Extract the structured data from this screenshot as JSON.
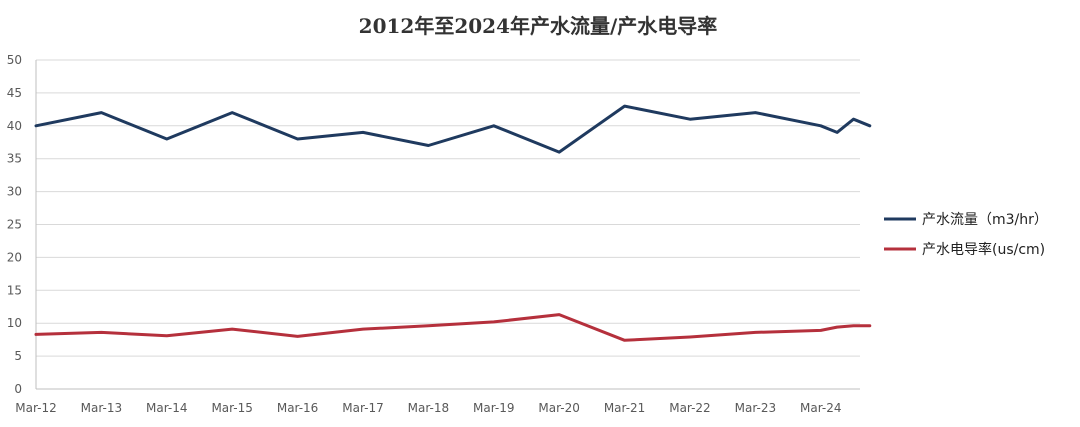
{
  "chart_data": {
    "type": "line",
    "title": "2012年至2024年产水流量/产水电导率",
    "xlabel": "",
    "ylabel": "",
    "ylim": [
      0,
      50
    ],
    "yticks": [
      "0",
      "5",
      "10",
      "15",
      "20",
      "25",
      "30",
      "35",
      "40",
      "45",
      "50"
    ],
    "xticks": [
      "Mar-12",
      "Mar-13",
      "Mar-14",
      "Mar-15",
      "Mar-16",
      "Mar-17",
      "Mar-18",
      "Mar-19",
      "Mar-20",
      "Mar-21",
      "Mar-22",
      "Mar-23",
      "Mar-24"
    ],
    "grid": true,
    "legend_position": "right",
    "series": [
      {
        "name": "产水流量（m3/hr）",
        "color": "#1f3a5f",
        "points": [
          {
            "x": "2012-03",
            "y": 40
          },
          {
            "x": "2013-03",
            "y": 42
          },
          {
            "x": "2014-03",
            "y": 38
          },
          {
            "x": "2015-03",
            "y": 42
          },
          {
            "x": "2016-03",
            "y": 38
          },
          {
            "x": "2017-03",
            "y": 39
          },
          {
            "x": "2018-03",
            "y": 37
          },
          {
            "x": "2019-03",
            "y": 40
          },
          {
            "x": "2020-03",
            "y": 36
          },
          {
            "x": "2021-03",
            "y": 43
          },
          {
            "x": "2022-03",
            "y": 41
          },
          {
            "x": "2023-03",
            "y": 42
          },
          {
            "x": "2024-03",
            "y": 40
          },
          {
            "x": "2024-06",
            "y": 39
          },
          {
            "x": "2024-09",
            "y": 41
          },
          {
            "x": "2024-12",
            "y": 40
          }
        ]
      },
      {
        "name": "产水电导率(us/cm)",
        "color": "#b5303c",
        "points": [
          {
            "x": "2012-03",
            "y": 8.3
          },
          {
            "x": "2013-03",
            "y": 8.6
          },
          {
            "x": "2014-03",
            "y": 8.1
          },
          {
            "x": "2015-03",
            "y": 9.1
          },
          {
            "x": "2016-03",
            "y": 8.0
          },
          {
            "x": "2017-03",
            "y": 9.1
          },
          {
            "x": "2018-03",
            "y": 9.6
          },
          {
            "x": "2019-03",
            "y": 10.2
          },
          {
            "x": "2020-03",
            "y": 11.3
          },
          {
            "x": "2021-03",
            "y": 7.4
          },
          {
            "x": "2022-03",
            "y": 7.9
          },
          {
            "x": "2023-03",
            "y": 8.6
          },
          {
            "x": "2024-03",
            "y": 8.9
          },
          {
            "x": "2024-06",
            "y": 9.4
          },
          {
            "x": "2024-09",
            "y": 9.6
          },
          {
            "x": "2024-12",
            "y": 9.6
          }
        ]
      }
    ]
  }
}
